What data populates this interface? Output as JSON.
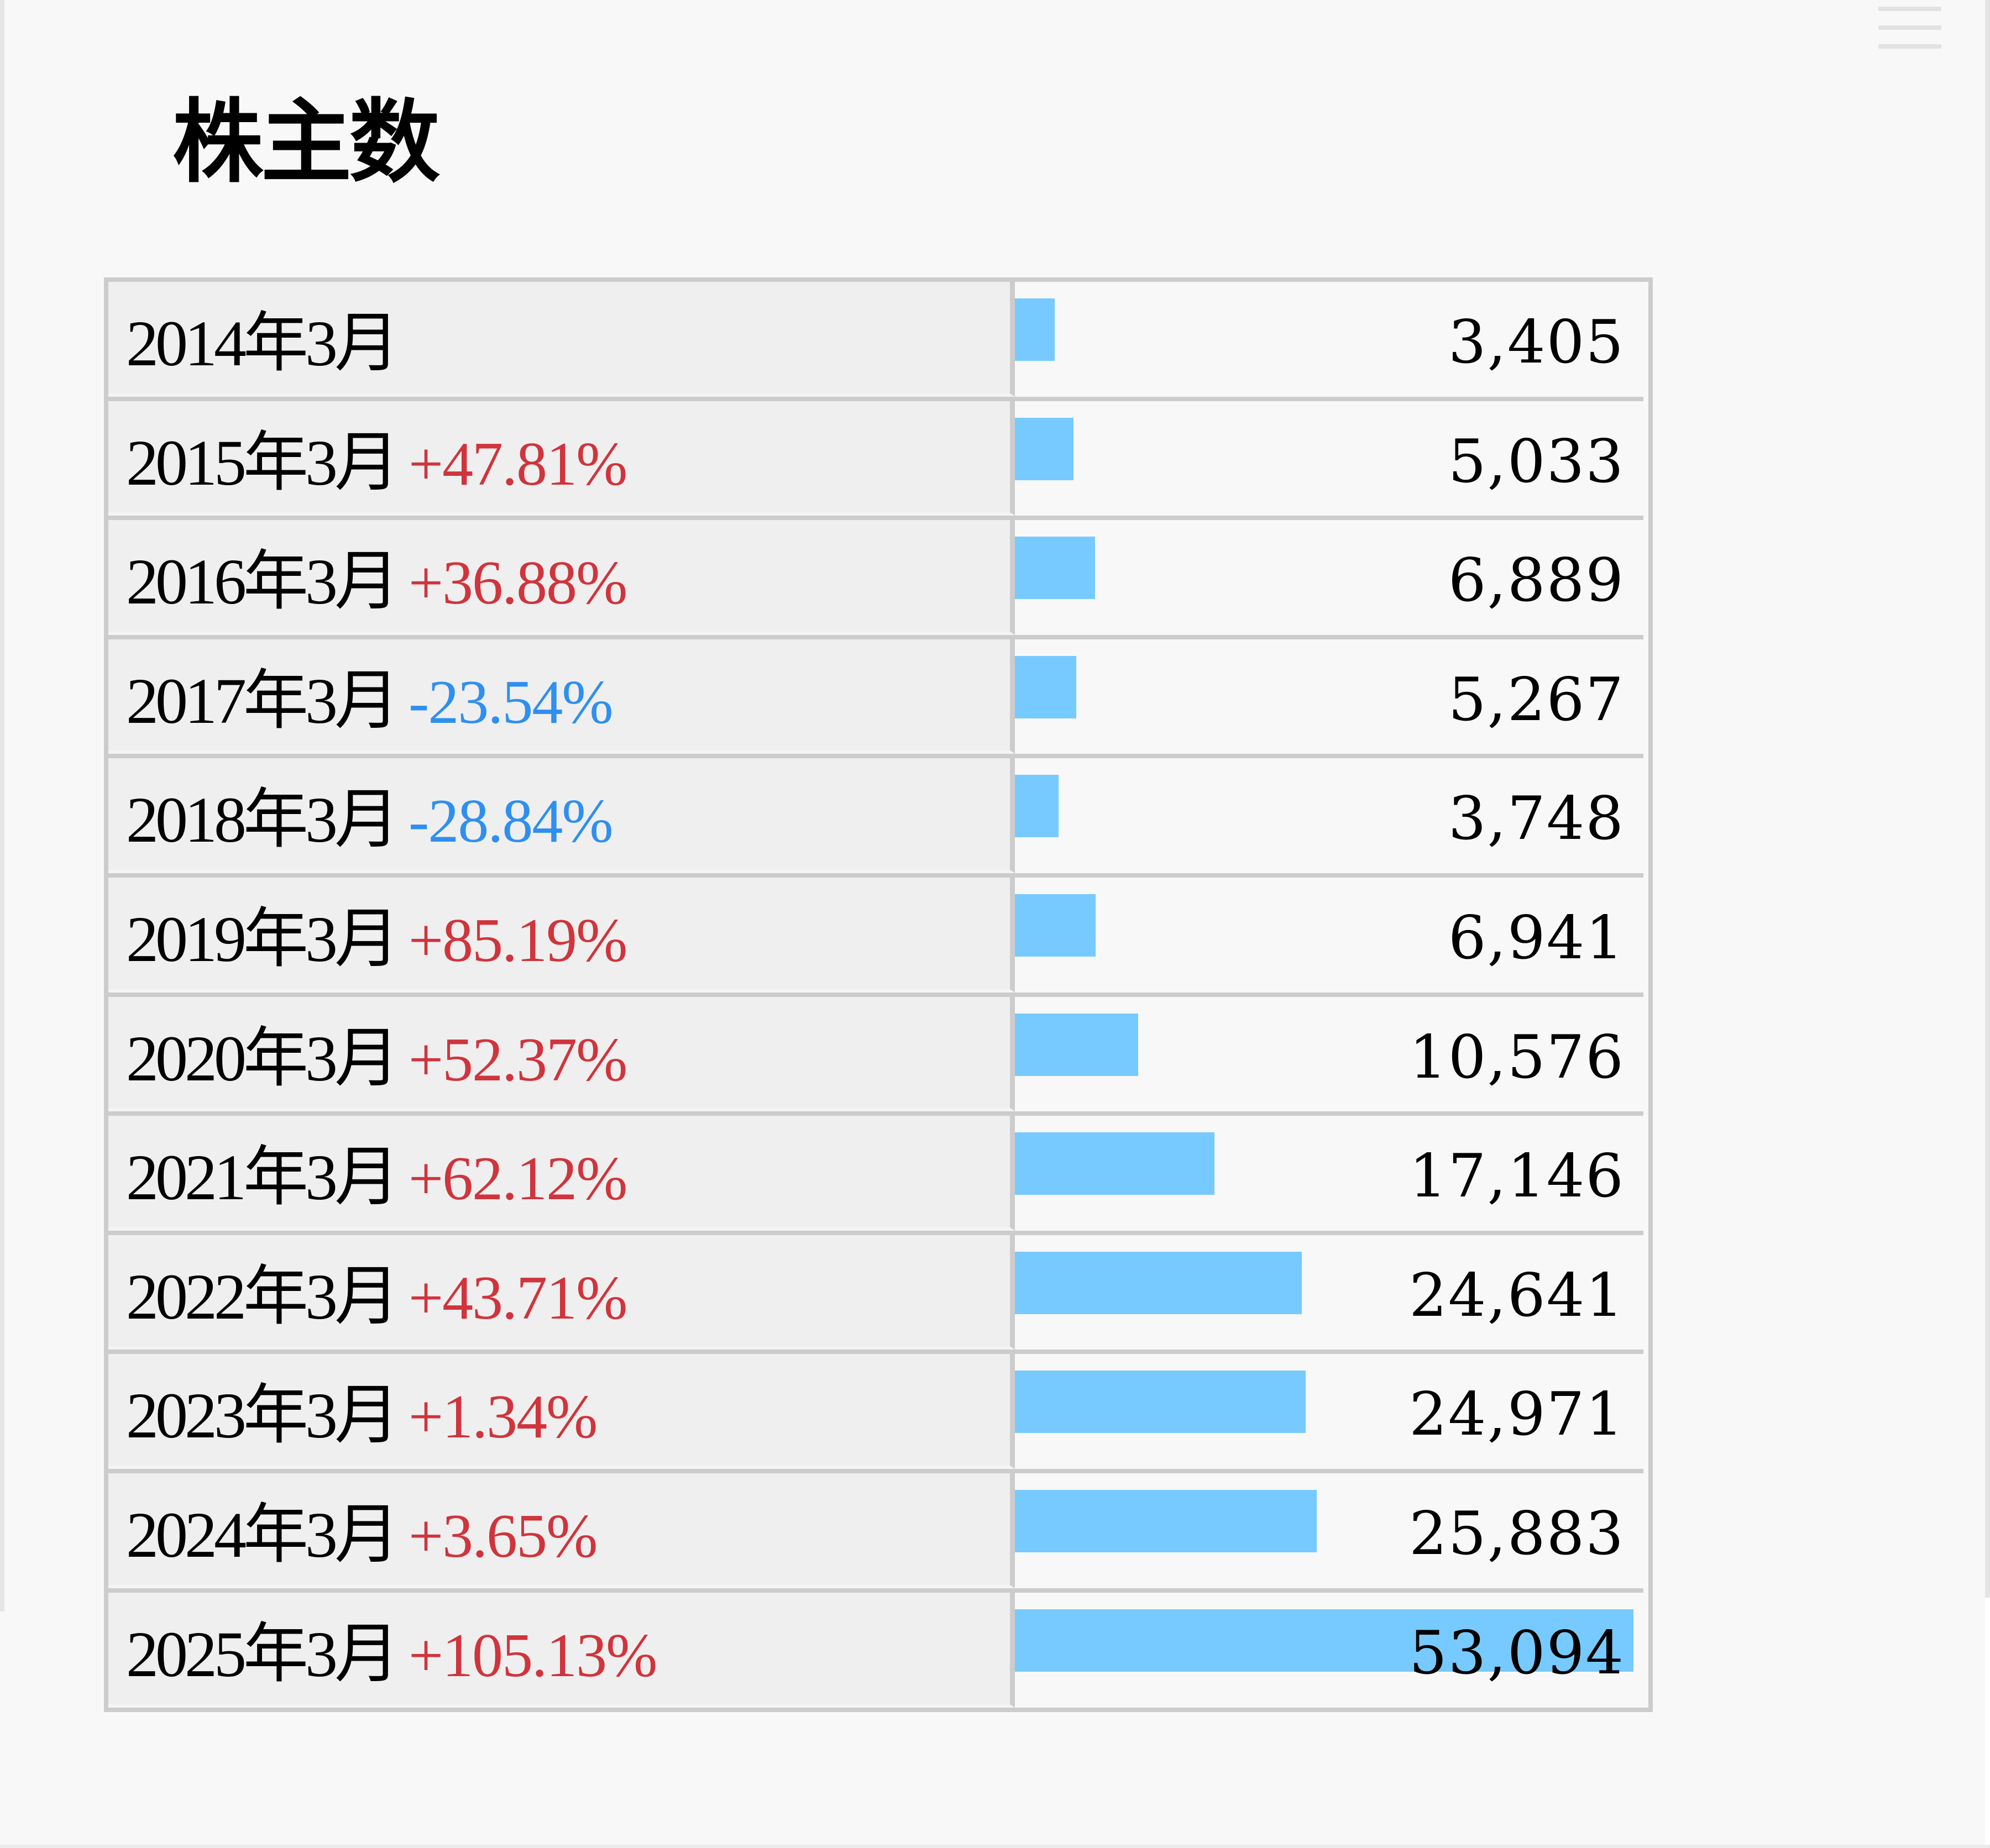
{
  "page": {
    "title": "株主数",
    "menu_icon": "hamburger-menu-icon"
  },
  "colors": {
    "bar": "#77caff",
    "increase": "#d0343c",
    "decrease": "#2f8ff0",
    "border": "#cccccc",
    "label_bg": "#efefef",
    "value_bg": "#f8f8f8"
  },
  "table": {
    "rows": [
      {
        "period": "2014年3月",
        "change": "",
        "direction": "",
        "value": "3,405"
      },
      {
        "period": "2015年3月",
        "change": "+47.81%",
        "direction": "up",
        "value": "5,033"
      },
      {
        "period": "2016年3月",
        "change": "+36.88%",
        "direction": "up",
        "value": "6,889"
      },
      {
        "period": "2017年3月",
        "change": "-23.54%",
        "direction": "down",
        "value": "5,267"
      },
      {
        "period": "2018年3月",
        "change": "-28.84%",
        "direction": "down",
        "value": "3,748"
      },
      {
        "period": "2019年3月",
        "change": "+85.19%",
        "direction": "up",
        "value": "6,941"
      },
      {
        "period": "2020年3月",
        "change": "+52.37%",
        "direction": "up",
        "value": "10,576"
      },
      {
        "period": "2021年3月",
        "change": "+62.12%",
        "direction": "up",
        "value": "17,146"
      },
      {
        "period": "2022年3月",
        "change": "+43.71%",
        "direction": "up",
        "value": "24,641"
      },
      {
        "period": "2023年3月",
        "change": "+1.34%",
        "direction": "up",
        "value": "24,971"
      },
      {
        "period": "2024年3月",
        "change": "+3.65%",
        "direction": "up",
        "value": "25,883"
      },
      {
        "period": "2025年3月",
        "change": "+105.13%",
        "direction": "up",
        "value": "53,094"
      }
    ]
  },
  "chart_data": {
    "type": "bar",
    "orientation": "horizontal",
    "title": "株主数",
    "categories": [
      "2014年3月",
      "2015年3月",
      "2016年3月",
      "2017年3月",
      "2018年3月",
      "2019年3月",
      "2020年3月",
      "2021年3月",
      "2022年3月",
      "2023年3月",
      "2024年3月",
      "2025年3月"
    ],
    "values": [
      3405,
      5033,
      6889,
      5267,
      3748,
      6941,
      10576,
      17146,
      24641,
      24971,
      25883,
      53094
    ],
    "yoy_change_percent": [
      null,
      47.81,
      36.88,
      -23.54,
      -28.84,
      85.19,
      52.37,
      62.12,
      43.71,
      1.34,
      3.65,
      105.13
    ],
    "xlabel": "",
    "ylabel": "",
    "xlim": [
      0,
      53094
    ],
    "grid": false,
    "legend": null
  }
}
